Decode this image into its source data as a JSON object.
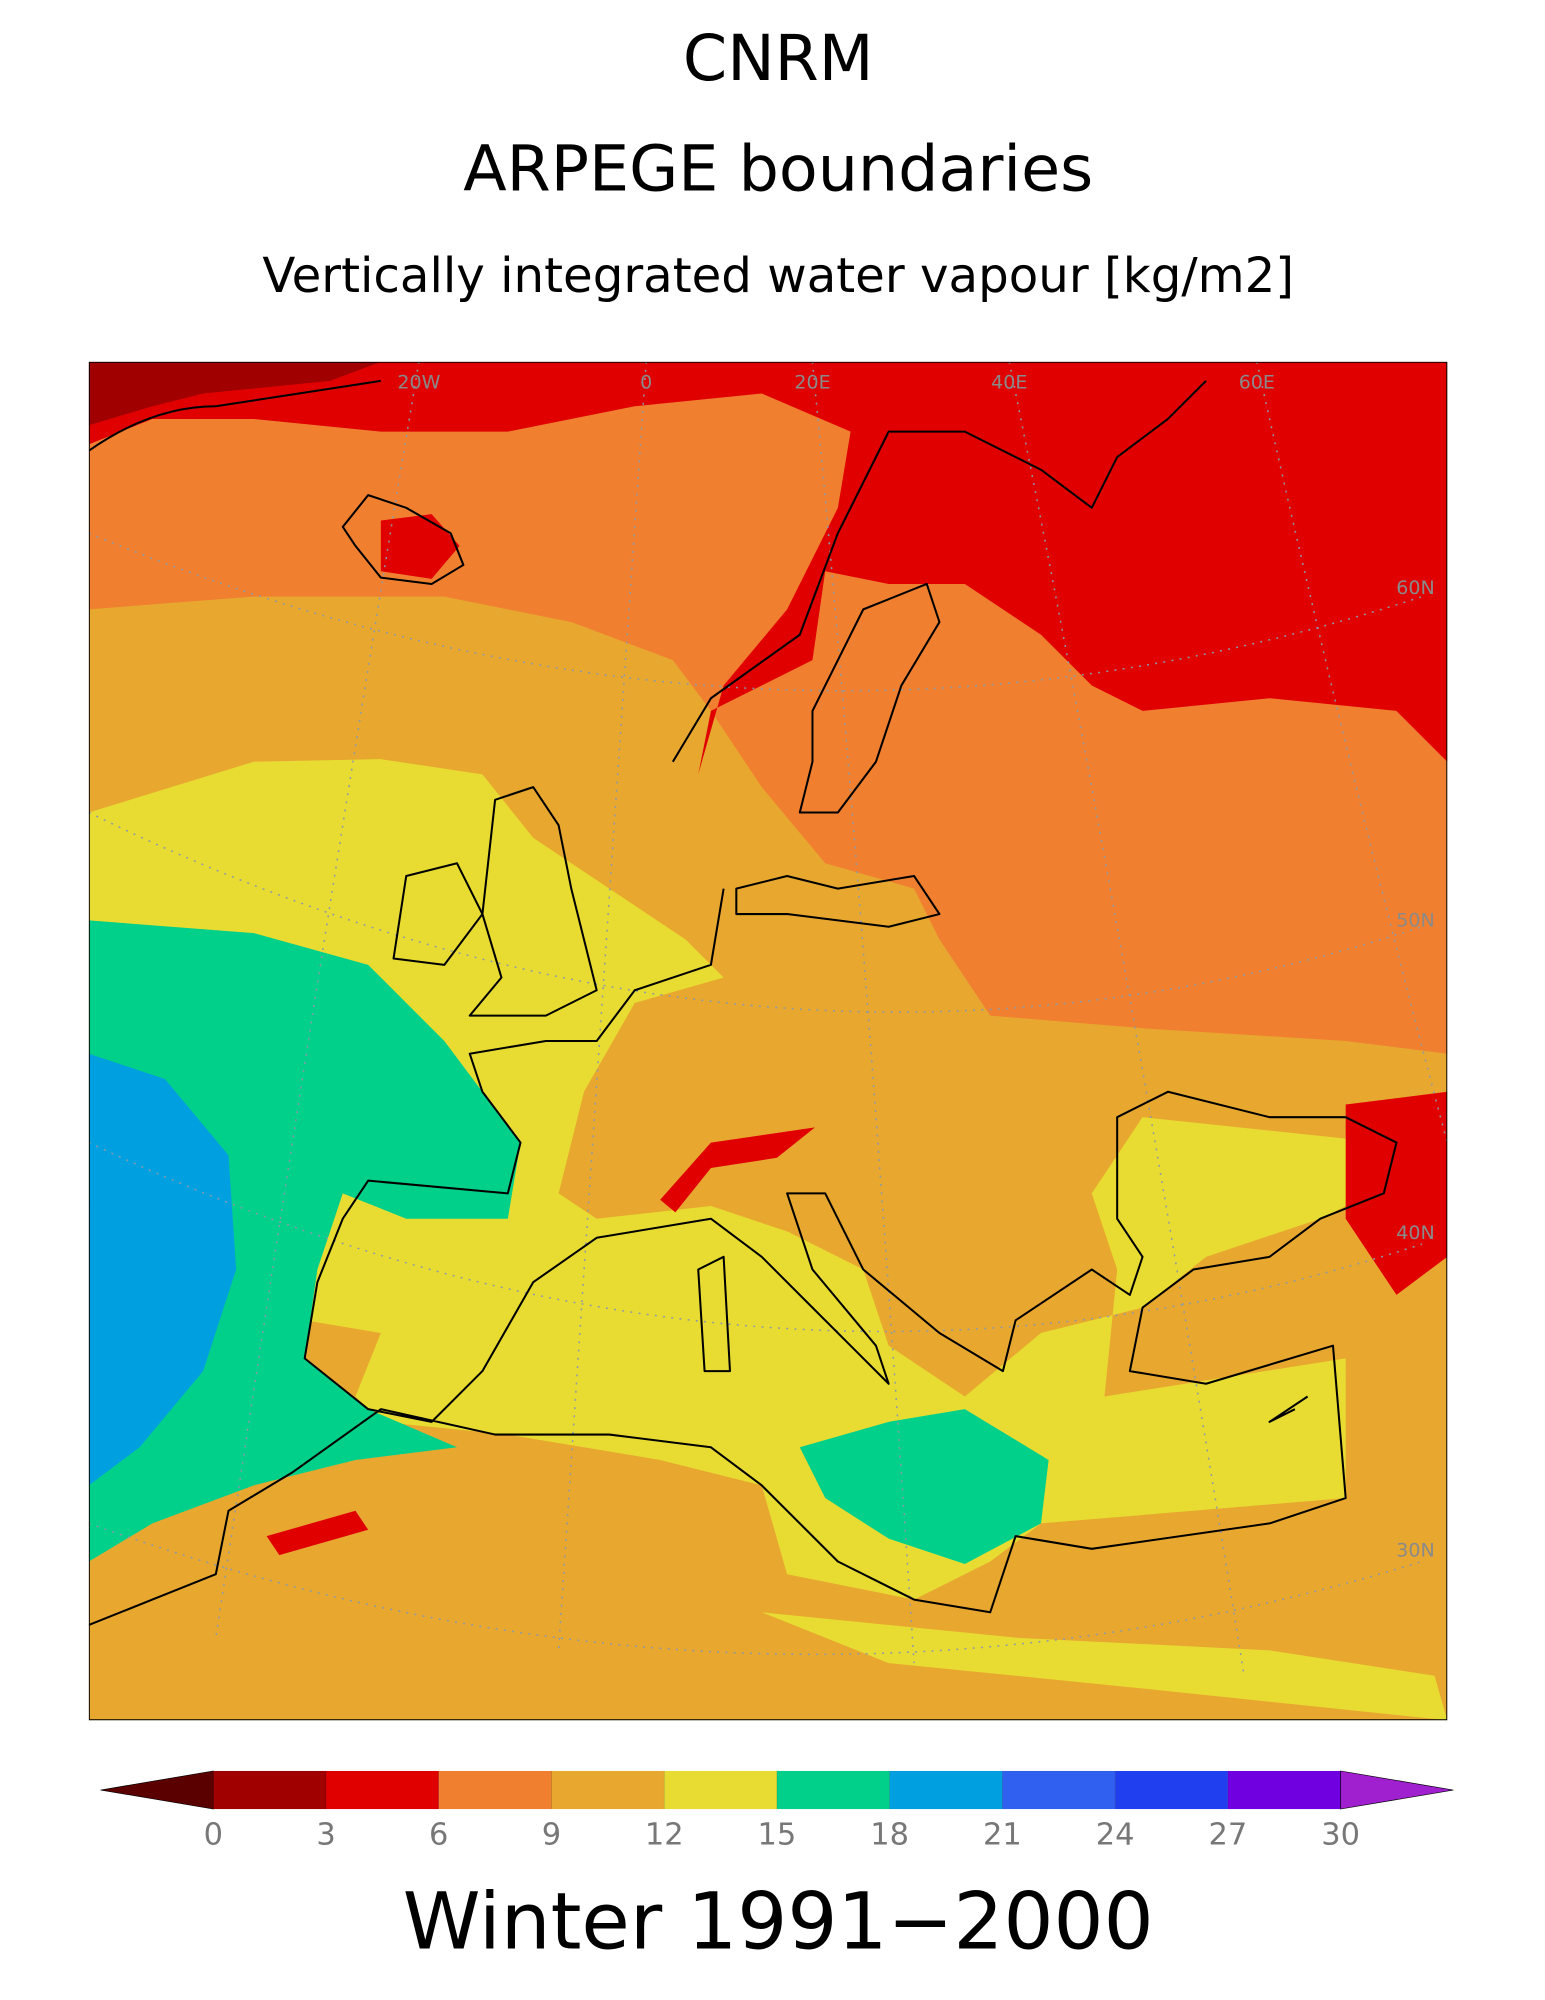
{
  "title": "CNRM",
  "subtitle": "ARPEGE boundaries",
  "variable": "Vertically integrated water vapour [kg/m2]",
  "map_labels": {
    "longitudes": [
      "20W",
      "0",
      "20E",
      "40E",
      "60E"
    ],
    "latitudes": [
      "60N",
      "50N",
      "40N",
      "30N"
    ]
  },
  "colorbar": {
    "ticks": [
      0,
      3,
      6,
      9,
      12,
      15,
      18,
      21,
      24,
      27,
      30
    ],
    "colors": [
      "#5a0000",
      "#a00000",
      "#e00000",
      "#f08030",
      "#e8a830",
      "#e8dc32",
      "#00d08a",
      "#00a0e0",
      "#3060f0",
      "#2040f0",
      "#7000e0",
      "#a020d0"
    ]
  },
  "footer": "Winter 1991−2000"
}
